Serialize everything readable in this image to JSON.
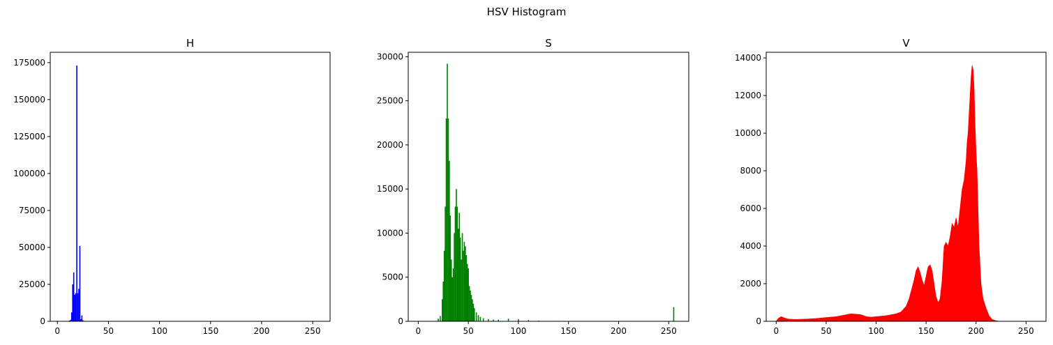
{
  "figure": {
    "title": "HSV Histogram"
  },
  "chart_data": [
    {
      "type": "bar",
      "title": "H",
      "color": "#0000ff",
      "xlim": [
        -7,
        267
      ],
      "ylim": [
        0,
        182000
      ],
      "xticks": [
        0,
        50,
        100,
        150,
        200,
        250
      ],
      "yticks": [
        0,
        25000,
        50000,
        75000,
        100000,
        125000,
        150000,
        175000
      ],
      "x": [
        0,
        12,
        13,
        14,
        15,
        16,
        17,
        18,
        19,
        20,
        21,
        22,
        23,
        24,
        25,
        26
      ],
      "values": [
        300,
        500,
        1000,
        6000,
        25000,
        33000,
        18000,
        19000,
        173000,
        19000,
        22000,
        51000,
        1500,
        4000,
        700,
        300
      ]
    },
    {
      "type": "bar",
      "title": "S",
      "color": "#008000",
      "xlim": [
        -10,
        270
      ],
      "ylim": [
        0,
        30500
      ],
      "xticks": [
        0,
        50,
        100,
        150,
        200,
        250
      ],
      "yticks": [
        0,
        5000,
        10000,
        15000,
        20000,
        25000,
        30000
      ],
      "x": [
        18,
        20,
        22,
        24,
        25,
        26,
        27,
        28,
        29,
        30,
        31,
        32,
        33,
        34,
        35,
        36,
        37,
        38,
        39,
        40,
        41,
        42,
        43,
        44,
        45,
        46,
        47,
        48,
        49,
        50,
        51,
        52,
        53,
        54,
        55,
        56,
        58,
        60,
        62,
        65,
        70,
        75,
        80,
        90,
        100,
        110,
        120,
        140,
        160,
        200,
        255
      ],
      "values": [
        50,
        300,
        600,
        2500,
        4500,
        8000,
        13000,
        23000,
        29200,
        23000,
        18200,
        12000,
        7000,
        5000,
        6000,
        10000,
        13000,
        15000,
        13000,
        10500,
        12300,
        9500,
        7000,
        10000,
        8000,
        9000,
        8500,
        7500,
        6500,
        6000,
        4000,
        3500,
        3000,
        2500,
        2000,
        1500,
        1000,
        700,
        500,
        350,
        250,
        200,
        180,
        300,
        250,
        150,
        80,
        50,
        30,
        20,
        1600
      ]
    },
    {
      "type": "area",
      "title": "V",
      "color": "#ff0000",
      "xlim": [
        -10,
        270
      ],
      "ylim": [
        0,
        14300
      ],
      "xticks": [
        0,
        50,
        100,
        150,
        200,
        250
      ],
      "yticks": [
        0,
        2000,
        4000,
        6000,
        8000,
        10000,
        12000,
        14000
      ],
      "x": [
        0,
        2,
        5,
        8,
        12,
        20,
        30,
        40,
        50,
        60,
        70,
        75,
        80,
        85,
        90,
        95,
        100,
        110,
        120,
        125,
        130,
        133,
        136,
        138,
        140,
        142,
        144,
        146,
        148,
        150,
        152,
        154,
        156,
        158,
        160,
        162,
        164,
        166,
        168,
        170,
        172,
        174,
        176,
        178,
        180,
        182,
        184,
        186,
        188,
        190,
        191,
        192,
        193,
        194,
        195,
        196,
        197,
        198,
        199,
        200,
        201,
        202,
        203,
        204,
        205,
        207,
        210,
        213,
        216,
        220,
        223
      ],
      "values": [
        0,
        150,
        250,
        180,
        120,
        100,
        120,
        150,
        200,
        250,
        350,
        400,
        380,
        350,
        250,
        220,
        250,
        300,
        400,
        500,
        800,
        1200,
        1800,
        2200,
        2700,
        2900,
        2600,
        2200,
        1900,
        2400,
        2900,
        3000,
        2700,
        2000,
        1300,
        1000,
        1200,
        2200,
        4000,
        4200,
        4000,
        4500,
        5200,
        5000,
        5500,
        5000,
        6000,
        7000,
        7500,
        8500,
        9500,
        10000,
        11000,
        12000,
        13000,
        13600,
        13400,
        12500,
        10500,
        9000,
        8000,
        6000,
        4000,
        3000,
        2000,
        1200,
        700,
        300,
        100,
        30,
        0
      ]
    }
  ]
}
